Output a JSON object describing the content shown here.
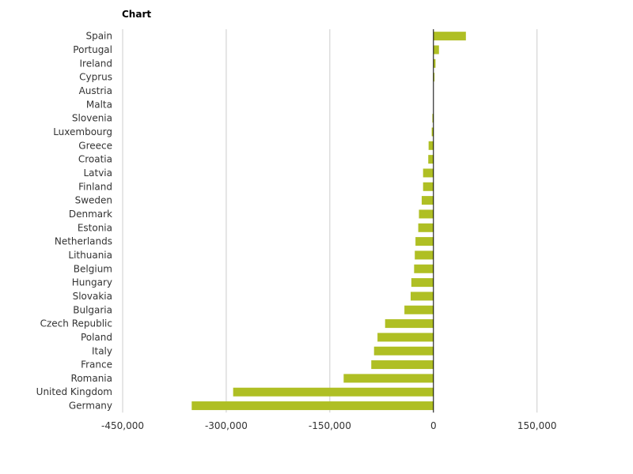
{
  "chart_data": {
    "type": "bar",
    "orientation": "horizontal",
    "title": "Chart",
    "categories": [
      "Spain",
      "Portugal",
      "Ireland",
      "Cyprus",
      "Austria",
      "Malta",
      "Slovenia",
      "Luxembourg",
      "Greece",
      "Croatia",
      "Latvia",
      "Finland",
      "Sweden",
      "Denmark",
      "Estonia",
      "Netherlands",
      "Lithuania",
      "Belgium",
      "Hungary",
      "Slovakia",
      "Bulgaria",
      "Czech Republic",
      "Poland",
      "Italy",
      "France",
      "Romania",
      "United Kingdom",
      "Germany"
    ],
    "values": [
      47000,
      8000,
      3000,
      1500,
      0,
      0,
      -1500,
      -2500,
      -7000,
      -7500,
      -15000,
      -15000,
      -17000,
      -21000,
      -22000,
      -26000,
      -27000,
      -28000,
      -32000,
      -33000,
      -42000,
      -70000,
      -81000,
      -86000,
      -90000,
      -130000,
      -290000,
      -350000
    ],
    "xlim": [
      -450000,
      250000
    ],
    "xticks": [
      -450000,
      -300000,
      -150000,
      0,
      150000
    ],
    "xtick_labels": [
      "-450,000",
      "-300,000",
      "-150,000",
      "0",
      "150,000"
    ],
    "xlabel": "",
    "ylabel": "",
    "grid": true,
    "legend": "none",
    "colors": {
      "bar": "#afbf24",
      "grid": "#cccccc",
      "zero_line": "#000000"
    }
  }
}
